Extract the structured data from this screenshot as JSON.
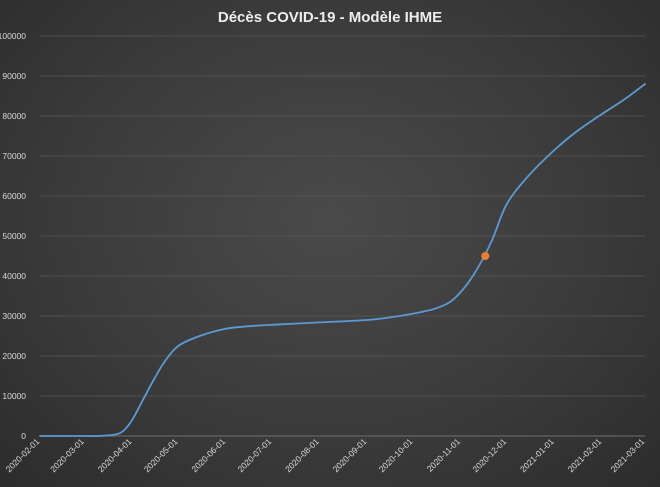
{
  "chart_data": {
    "type": "line",
    "title": "Décès COVID-19 - Modèle IHME",
    "xlabel": "",
    "ylabel": "",
    "ylim": [
      0,
      100000
    ],
    "y_ticks": [
      0,
      10000,
      20000,
      30000,
      40000,
      50000,
      60000,
      70000,
      80000,
      90000,
      100000
    ],
    "y_tick_labels": [
      "0",
      "10000",
      "20000",
      "30000",
      "40000",
      "50000",
      "60000",
      "70000",
      "80000",
      "90000",
      "100000"
    ],
    "x_ticks": [
      "2020-02-01",
      "2020-03-01",
      "2020-04-01",
      "2020-05-01",
      "2020-06-01",
      "2020-07-01",
      "2020-08-01",
      "2020-09-01",
      "2020-10-01",
      "2020-11-01",
      "2020-12-01",
      "2021-01-01",
      "2021-02-01",
      "2021-03-01"
    ],
    "xlim": [
      "2020-02-01",
      "2021-03-01"
    ],
    "grid": true,
    "legend": "none",
    "series": [
      {
        "color": "#5b9bd5",
        "points": [
          {
            "x": "2020-02-01",
            "y": 0
          },
          {
            "x": "2020-03-01",
            "y": 0
          },
          {
            "x": "2020-03-10",
            "y": 0
          },
          {
            "x": "2020-03-20",
            "y": 300
          },
          {
            "x": "2020-03-26",
            "y": 1200
          },
          {
            "x": "2020-04-01",
            "y": 4000
          },
          {
            "x": "2020-04-08",
            "y": 9000
          },
          {
            "x": "2020-04-15",
            "y": 14000
          },
          {
            "x": "2020-04-22",
            "y": 18500
          },
          {
            "x": "2020-05-01",
            "y": 22500
          },
          {
            "x": "2020-05-15",
            "y": 25000
          },
          {
            "x": "2020-06-01",
            "y": 26800
          },
          {
            "x": "2020-06-15",
            "y": 27400
          },
          {
            "x": "2020-07-01",
            "y": 27800
          },
          {
            "x": "2020-08-01",
            "y": 28400
          },
          {
            "x": "2020-09-01",
            "y": 29000
          },
          {
            "x": "2020-09-15",
            "y": 29600
          },
          {
            "x": "2020-10-01",
            "y": 30600
          },
          {
            "x": "2020-10-15",
            "y": 31800
          },
          {
            "x": "2020-10-25",
            "y": 33500
          },
          {
            "x": "2020-11-01",
            "y": 36000
          },
          {
            "x": "2020-11-08",
            "y": 39500
          },
          {
            "x": "2020-11-15",
            "y": 44000
          },
          {
            "x": "2020-11-22",
            "y": 49500
          },
          {
            "x": "2020-12-01",
            "y": 58000
          },
          {
            "x": "2020-12-15",
            "y": 65000
          },
          {
            "x": "2021-01-01",
            "y": 71500
          },
          {
            "x": "2021-01-15",
            "y": 76000
          },
          {
            "x": "2021-02-01",
            "y": 80500
          },
          {
            "x": "2021-02-15",
            "y": 84000
          },
          {
            "x": "2021-03-01",
            "y": 88000
          }
        ]
      }
    ],
    "highlight_point": {
      "x": "2020-11-17",
      "y": 45000,
      "color": "#ed7d31"
    }
  }
}
